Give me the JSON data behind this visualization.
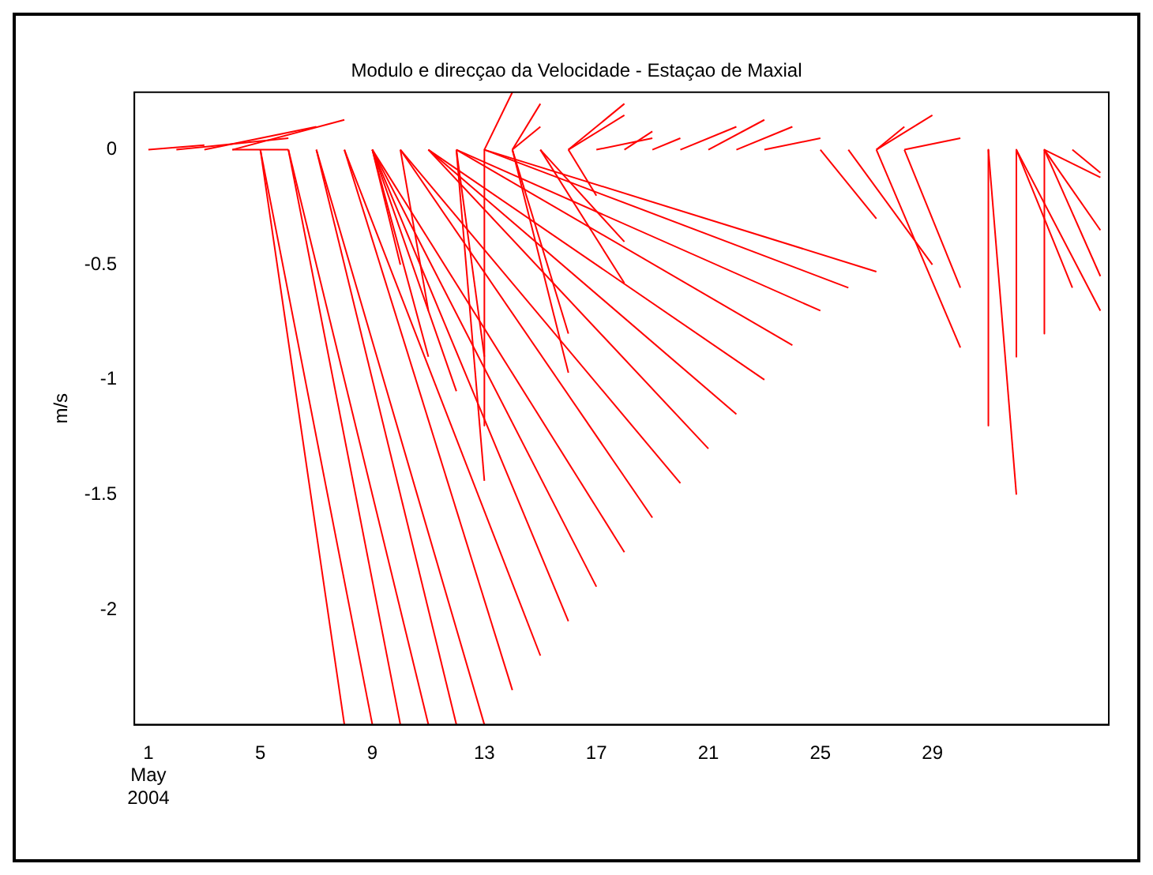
{
  "chart_data": {
    "type": "line",
    "title": "Modulo e direcçao da Velocidade - Estaçao de Maxial",
    "ylabel": "m/s",
    "xlim": [
      0.5,
      35.3
    ],
    "ylim": [
      -2.5,
      0.25
    ],
    "xticks": [
      {
        "value": 1,
        "label": "1\nMay\n2004"
      },
      5,
      9,
      13,
      17,
      21,
      25,
      29
    ],
    "yticks": [
      0,
      -0.5,
      -1,
      -1.5,
      -2
    ],
    "grid": false,
    "legend": false,
    "marker": "none",
    "line_style": "solid",
    "series": [
      {
        "color": "#ff0000",
        "x": [
          1,
          3
        ],
        "values": [
          0,
          0.02
        ]
      },
      {
        "color": "#ff0000",
        "x": [
          2,
          6
        ],
        "values": [
          0,
          0.05
        ]
      },
      {
        "color": "#ff0000",
        "x": [
          3,
          7
        ],
        "values": [
          0,
          0.1
        ]
      },
      {
        "color": "#ff0000",
        "x": [
          4,
          8
        ],
        "values": [
          0,
          0.13
        ]
      },
      {
        "color": "#ff0000",
        "x": [
          4,
          6
        ],
        "values": [
          0,
          0
        ]
      },
      {
        "color": "#ff0000",
        "x": [
          5,
          8
        ],
        "values": [
          0,
          -2.5
        ]
      },
      {
        "color": "#ff0000",
        "x": [
          5,
          9
        ],
        "values": [
          0,
          -2.5
        ]
      },
      {
        "color": "#ff0000",
        "x": [
          6,
          10
        ],
        "values": [
          0,
          -2.5
        ]
      },
      {
        "color": "#ff0000",
        "x": [
          6,
          11
        ],
        "values": [
          0,
          -2.5
        ]
      },
      {
        "color": "#ff0000",
        "x": [
          7,
          12
        ],
        "values": [
          0,
          -2.5
        ]
      },
      {
        "color": "#ff0000",
        "x": [
          7,
          13
        ],
        "values": [
          0,
          -2.5
        ]
      },
      {
        "color": "#ff0000",
        "x": [
          8,
          14
        ],
        "values": [
          0,
          -2.35
        ]
      },
      {
        "color": "#ff0000",
        "x": [
          8,
          15
        ],
        "values": [
          0,
          -2.2
        ]
      },
      {
        "color": "#ff0000",
        "x": [
          9,
          16
        ],
        "values": [
          0,
          -2.05
        ]
      },
      {
        "color": "#ff0000",
        "x": [
          9,
          17
        ],
        "values": [
          0,
          -1.9
        ]
      },
      {
        "color": "#ff0000",
        "x": [
          9,
          18
        ],
        "values": [
          0,
          -1.75
        ]
      },
      {
        "color": "#ff0000",
        "x": [
          10,
          19
        ],
        "values": [
          0,
          -1.6
        ]
      },
      {
        "color": "#ff0000",
        "x": [
          10,
          20
        ],
        "values": [
          0,
          -1.45
        ]
      },
      {
        "color": "#ff0000",
        "x": [
          11,
          21
        ],
        "values": [
          0,
          -1.3
        ]
      },
      {
        "color": "#ff0000",
        "x": [
          11,
          22
        ],
        "values": [
          0,
          -1.15
        ]
      },
      {
        "color": "#ff0000",
        "x": [
          11,
          23
        ],
        "values": [
          0,
          -1
        ]
      },
      {
        "color": "#ff0000",
        "x": [
          12,
          24
        ],
        "values": [
          0,
          -0.85
        ]
      },
      {
        "color": "#ff0000",
        "x": [
          12,
          25
        ],
        "values": [
          0,
          -0.7
        ]
      },
      {
        "color": "#ff0000",
        "x": [
          13,
          26
        ],
        "values": [
          0,
          -0.6
        ]
      },
      {
        "color": "#ff0000",
        "x": [
          13,
          27
        ],
        "values": [
          0,
          -0.53
        ]
      },
      {
        "color": "#ff0000",
        "x": [
          9,
          12
        ],
        "values": [
          0,
          -1.05
        ]
      },
      {
        "color": "#ff0000",
        "x": [
          9,
          11
        ],
        "values": [
          0,
          -0.9
        ]
      },
      {
        "color": "#ff0000",
        "x": [
          10,
          11
        ],
        "values": [
          0,
          -0.7
        ]
      },
      {
        "color": "#ff0000",
        "x": [
          9,
          10
        ],
        "values": [
          0,
          -0.5
        ]
      },
      {
        "color": "#ff0000",
        "x": [
          12,
          13
        ],
        "values": [
          0,
          -1.44
        ]
      },
      {
        "color": "#ff0000",
        "x": [
          13,
          13
        ],
        "values": [
          0,
          -1.2
        ]
      },
      {
        "color": "#ff0000",
        "x": [
          12,
          13
        ],
        "values": [
          0,
          -0.9
        ]
      },
      {
        "color": "#ff0000",
        "x": [
          13,
          14
        ],
        "values": [
          0,
          0.25
        ]
      },
      {
        "color": "#ff0000",
        "x": [
          14,
          15
        ],
        "values": [
          0,
          0.2
        ]
      },
      {
        "color": "#ff0000",
        "x": [
          14,
          15
        ],
        "values": [
          0,
          0.1
        ]
      },
      {
        "color": "#ff0000",
        "x": [
          14,
          16
        ],
        "values": [
          0,
          -0.97
        ]
      },
      {
        "color": "#ff0000",
        "x": [
          14,
          16
        ],
        "values": [
          0,
          -0.8
        ]
      },
      {
        "color": "#ff0000",
        "x": [
          15,
          18
        ],
        "values": [
          0,
          -0.58
        ]
      },
      {
        "color": "#ff0000",
        "x": [
          15,
          18
        ],
        "values": [
          0,
          -0.4
        ]
      },
      {
        "color": "#ff0000",
        "x": [
          16,
          17
        ],
        "values": [
          0,
          -0.2
        ]
      },
      {
        "color": "#ff0000",
        "x": [
          16,
          18
        ],
        "values": [
          0,
          0.2
        ]
      },
      {
        "color": "#ff0000",
        "x": [
          16,
          18
        ],
        "values": [
          0,
          0.15
        ]
      },
      {
        "color": "#ff0000",
        "x": [
          17,
          19
        ],
        "values": [
          0,
          0.05
        ]
      },
      {
        "color": "#ff0000",
        "x": [
          18,
          19
        ],
        "values": [
          0,
          0.08
        ]
      },
      {
        "color": "#ff0000",
        "x": [
          19,
          20
        ],
        "values": [
          0,
          0.05
        ]
      },
      {
        "color": "#ff0000",
        "x": [
          20,
          22
        ],
        "values": [
          0,
          0.1
        ]
      },
      {
        "color": "#ff0000",
        "x": [
          21,
          23
        ],
        "values": [
          0,
          0.13
        ]
      },
      {
        "color": "#ff0000",
        "x": [
          22,
          24
        ],
        "values": [
          0,
          0.1
        ]
      },
      {
        "color": "#ff0000",
        "x": [
          23,
          25
        ],
        "values": [
          0,
          0.05
        ]
      },
      {
        "color": "#ff0000",
        "x": [
          25,
          27
        ],
        "values": [
          0,
          -0.3
        ]
      },
      {
        "color": "#ff0000",
        "x": [
          26,
          29
        ],
        "values": [
          0,
          -0.5
        ]
      },
      {
        "color": "#ff0000",
        "x": [
          27,
          30
        ],
        "values": [
          0,
          -0.86
        ]
      },
      {
        "color": "#ff0000",
        "x": [
          28,
          30
        ],
        "values": [
          0,
          -0.6
        ]
      },
      {
        "color": "#ff0000",
        "x": [
          27,
          28
        ],
        "values": [
          0,
          0.1
        ]
      },
      {
        "color": "#ff0000",
        "x": [
          27,
          29
        ],
        "values": [
          0,
          0.15
        ]
      },
      {
        "color": "#ff0000",
        "x": [
          28,
          30
        ],
        "values": [
          0,
          0.05
        ]
      },
      {
        "color": "#ff0000",
        "x": [
          31,
          32
        ],
        "values": [
          0,
          -1.5
        ]
      },
      {
        "color": "#ff0000",
        "x": [
          31,
          31
        ],
        "values": [
          0,
          -1.2
        ]
      },
      {
        "color": "#ff0000",
        "x": [
          32,
          32
        ],
        "values": [
          0,
          -0.9
        ]
      },
      {
        "color": "#ff0000",
        "x": [
          33,
          33
        ],
        "values": [
          0,
          -0.8
        ]
      },
      {
        "color": "#ff0000",
        "x": [
          32,
          34
        ],
        "values": [
          0,
          -0.6
        ]
      },
      {
        "color": "#ff0000",
        "x": [
          32,
          35
        ],
        "values": [
          0,
          -0.7
        ]
      },
      {
        "color": "#ff0000",
        "x": [
          33,
          35
        ],
        "values": [
          0,
          -0.55
        ]
      },
      {
        "color": "#ff0000",
        "x": [
          33,
          35
        ],
        "values": [
          0,
          -0.35
        ]
      },
      {
        "color": "#ff0000",
        "x": [
          33,
          35
        ],
        "values": [
          0,
          -0.12
        ]
      },
      {
        "color": "#ff0000",
        "x": [
          34,
          35
        ],
        "values": [
          0,
          -0.1
        ]
      }
    ]
  }
}
